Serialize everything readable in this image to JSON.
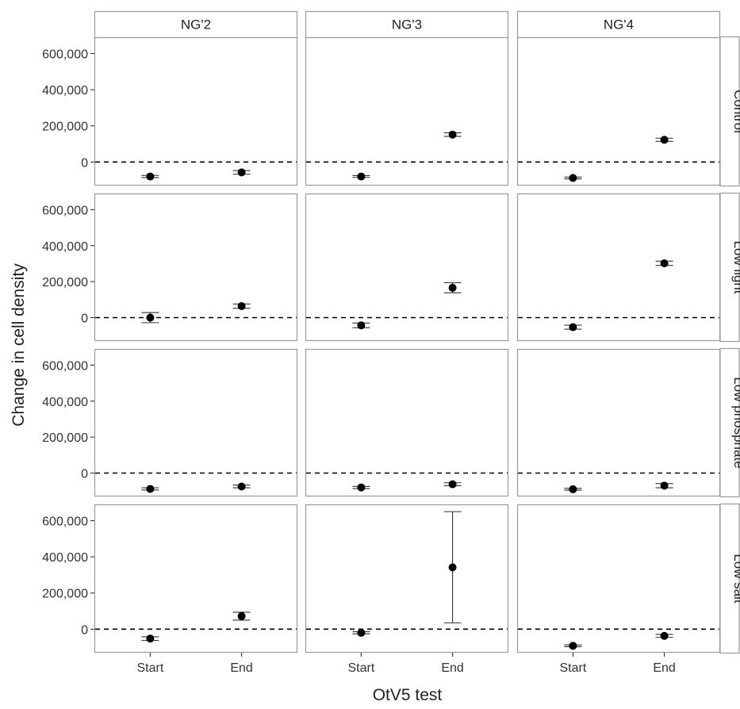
{
  "chart_data": {
    "type": "scatter",
    "subtype": "faceted point estimates with error bars",
    "xlabel": "OtV5 test",
    "ylabel": "Change in cell density",
    "x_categories": [
      "Start",
      "End"
    ],
    "y_ticks": [
      0,
      200000,
      400000,
      600000
    ],
    "y_tick_labels": [
      "0",
      "200,000",
      "400,000",
      "600,000"
    ],
    "ylim": [
      -130000,
      690000
    ],
    "reference_line": {
      "y": 0,
      "style": "dashed"
    },
    "columns": [
      "NG'2",
      "NG'3",
      "NG'4"
    ],
    "rows": [
      "Control",
      "Low light",
      "Low phosphate",
      "Low salt"
    ],
    "grid": false,
    "colors": {
      "point": "#000000",
      "errorbar": "#333333",
      "panel_border": "#9a9a9a",
      "strip_fill": "#ffffff"
    },
    "panels": [
      {
        "row": "Control",
        "col": "NG'2",
        "points": [
          {
            "x": "Start",
            "y": -80000,
            "ymin": -86000,
            "ymax": -74000
          },
          {
            "x": "End",
            "y": -57000,
            "ymin": -67000,
            "ymax": -47000
          }
        ]
      },
      {
        "row": "Control",
        "col": "NG'3",
        "points": [
          {
            "x": "Start",
            "y": -80000,
            "ymin": -85000,
            "ymax": -75000
          },
          {
            "x": "End",
            "y": 152000,
            "ymin": 142000,
            "ymax": 162000
          }
        ]
      },
      {
        "row": "Control",
        "col": "NG'4",
        "points": [
          {
            "x": "Start",
            "y": -88000,
            "ymin": -93000,
            "ymax": -83000
          },
          {
            "x": "End",
            "y": 123000,
            "ymin": 114000,
            "ymax": 132000
          }
        ]
      },
      {
        "row": "Low light",
        "col": "NG'2",
        "points": [
          {
            "x": "Start",
            "y": 0,
            "ymin": -28000,
            "ymax": 28000
          },
          {
            "x": "End",
            "y": 64000,
            "ymin": 52000,
            "ymax": 76000
          }
        ]
      },
      {
        "row": "Low light",
        "col": "NG'3",
        "points": [
          {
            "x": "Start",
            "y": -43000,
            "ymin": -56000,
            "ymax": -30000
          },
          {
            "x": "End",
            "y": 166000,
            "ymin": 138000,
            "ymax": 194000
          }
        ]
      },
      {
        "row": "Low light",
        "col": "NG'4",
        "points": [
          {
            "x": "Start",
            "y": -53000,
            "ymin": -64000,
            "ymax": -42000
          },
          {
            "x": "End",
            "y": 302000,
            "ymin": 290000,
            "ymax": 314000
          }
        ]
      },
      {
        "row": "Low phosphate",
        "col": "NG'2",
        "points": [
          {
            "x": "Start",
            "y": -88000,
            "ymin": -94000,
            "ymax": -82000
          },
          {
            "x": "End",
            "y": -75000,
            "ymin": -82000,
            "ymax": -67000
          }
        ]
      },
      {
        "row": "Low phosphate",
        "col": "NG'3",
        "points": [
          {
            "x": "Start",
            "y": -80000,
            "ymin": -86000,
            "ymax": -74000
          },
          {
            "x": "End",
            "y": -62000,
            "ymin": -70000,
            "ymax": -54000
          }
        ]
      },
      {
        "row": "Low phosphate",
        "col": "NG'4",
        "points": [
          {
            "x": "Start",
            "y": -90000,
            "ymin": -95000,
            "ymax": -85000
          },
          {
            "x": "End",
            "y": -70000,
            "ymin": -82000,
            "ymax": -58000
          }
        ]
      },
      {
        "row": "Low salt",
        "col": "NG'2",
        "points": [
          {
            "x": "Start",
            "y": -52000,
            "ymin": -62000,
            "ymax": -42000
          },
          {
            "x": "End",
            "y": 72000,
            "ymin": 50000,
            "ymax": 94000
          }
        ]
      },
      {
        "row": "Low salt",
        "col": "NG'3",
        "points": [
          {
            "x": "Start",
            "y": -20000,
            "ymin": -26000,
            "ymax": -14000
          },
          {
            "x": "End",
            "y": 342000,
            "ymin": 35000,
            "ymax": 650000
          }
        ]
      },
      {
        "row": "Low salt",
        "col": "NG'4",
        "points": [
          {
            "x": "Start",
            "y": -92000,
            "ymin": -97000,
            "ymax": -87000
          },
          {
            "x": "End",
            "y": -37000,
            "ymin": -45000,
            "ymax": -29000
          }
        ]
      }
    ]
  }
}
